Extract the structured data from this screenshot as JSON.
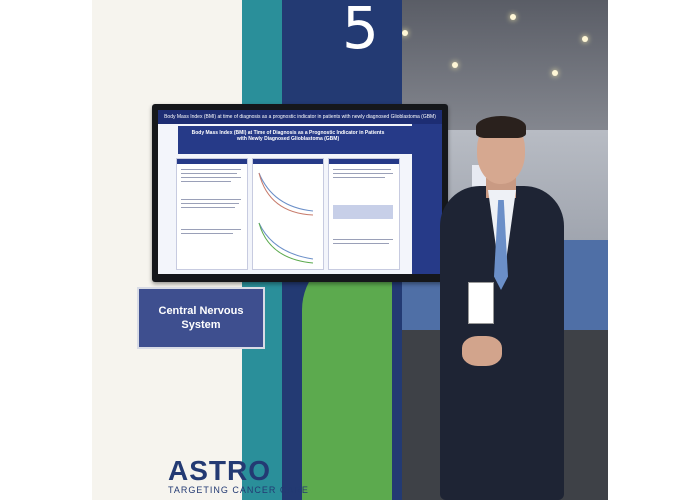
{
  "booth": {
    "number": "5",
    "sign_line1": "Central Nervous",
    "sign_line2": "System"
  },
  "screen": {
    "header": "Body Mass Index (BMI) at time of diagnosis as a prognostic indicator in patients with newly diagnosed Glioblastoma (GBM)",
    "poster_title": "Body Mass Index (BMI) at Time of Diagnosis as a Prognostic Indicator in Patients with Newly Diagnosed Glioblastoma (GBM)"
  },
  "logo": {
    "name": "ASTRO",
    "tagline": "TARGETING CANCER CARE"
  },
  "colors": {
    "navy": "#233a73",
    "teal": "#2a8f9a",
    "green": "#5caa4e"
  }
}
